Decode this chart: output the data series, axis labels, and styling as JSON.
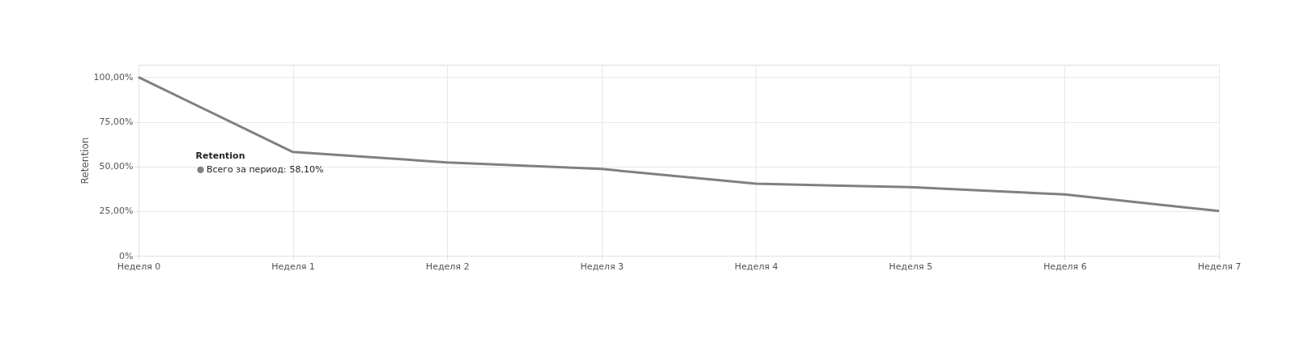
{
  "chart_data": {
    "type": "line",
    "ylabel": "Retention",
    "categories": [
      "Неделя 0",
      "Неделя 1",
      "Неделя 2",
      "Неделя 3",
      "Неделя 4",
      "Неделя 5",
      "Неделя 6",
      "Неделя 7"
    ],
    "series": [
      {
        "name": "Всего за период:",
        "color": "#808080",
        "values": [
          100,
          58.1,
          52.3,
          48.6,
          40.3,
          38.4,
          34.3,
          25.0
        ],
        "value_labels": [
          null,
          "58,10%",
          null,
          null,
          null,
          null,
          null,
          null
        ]
      }
    ],
    "ylim": [
      0,
      107
    ],
    "yticks": [
      {
        "value": 0,
        "label": "0%"
      },
      {
        "value": 25,
        "label": "25,00%"
      },
      {
        "value": 50,
        "label": "50,00%"
      },
      {
        "value": 75,
        "label": "75,00%"
      },
      {
        "value": 100,
        "label": "100,00%"
      }
    ],
    "grid": true,
    "marker": "none",
    "line_style": "solid",
    "annotations": [
      "Retention"
    ]
  }
}
